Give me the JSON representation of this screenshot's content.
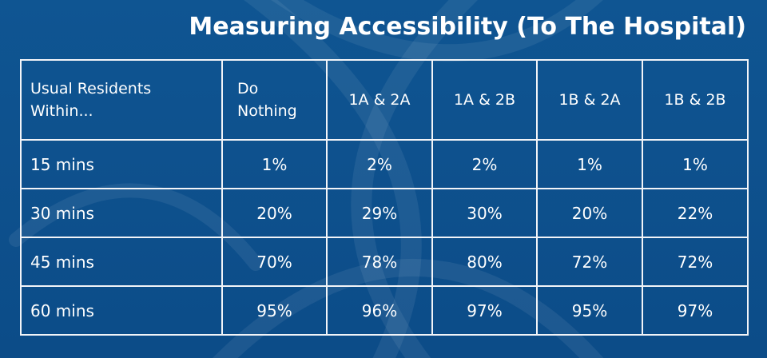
{
  "title": "Measuring Accessibility (To The Hospital)",
  "chart_data": {
    "type": "table",
    "title": "Measuring Accessibility (To The Hospital)",
    "corner_label": [
      "Usual Residents",
      "Within..."
    ],
    "columns": [
      [
        "Do",
        "Nothing"
      ],
      [
        "1A & 2A"
      ],
      [
        "1A & 2B"
      ],
      [
        "1B & 2A"
      ],
      [
        "1B & 2B"
      ]
    ],
    "rows": [
      {
        "label": "15 mins",
        "values": [
          "1%",
          "2%",
          "2%",
          "1%",
          "1%"
        ]
      },
      {
        "label": "30 mins",
        "values": [
          "20%",
          "29%",
          "30%",
          "20%",
          "22%"
        ]
      },
      {
        "label": "45 mins",
        "values": [
          "70%",
          "78%",
          "80%",
          "72%",
          "72%"
        ]
      },
      {
        "label": "60 mins",
        "values": [
          "95%",
          "96%",
          "97%",
          "95%",
          "97%"
        ]
      }
    ]
  },
  "colors": {
    "background": "#0d4f8b",
    "grid_lines": "#f2f4f8",
    "text": "#ffffff"
  }
}
